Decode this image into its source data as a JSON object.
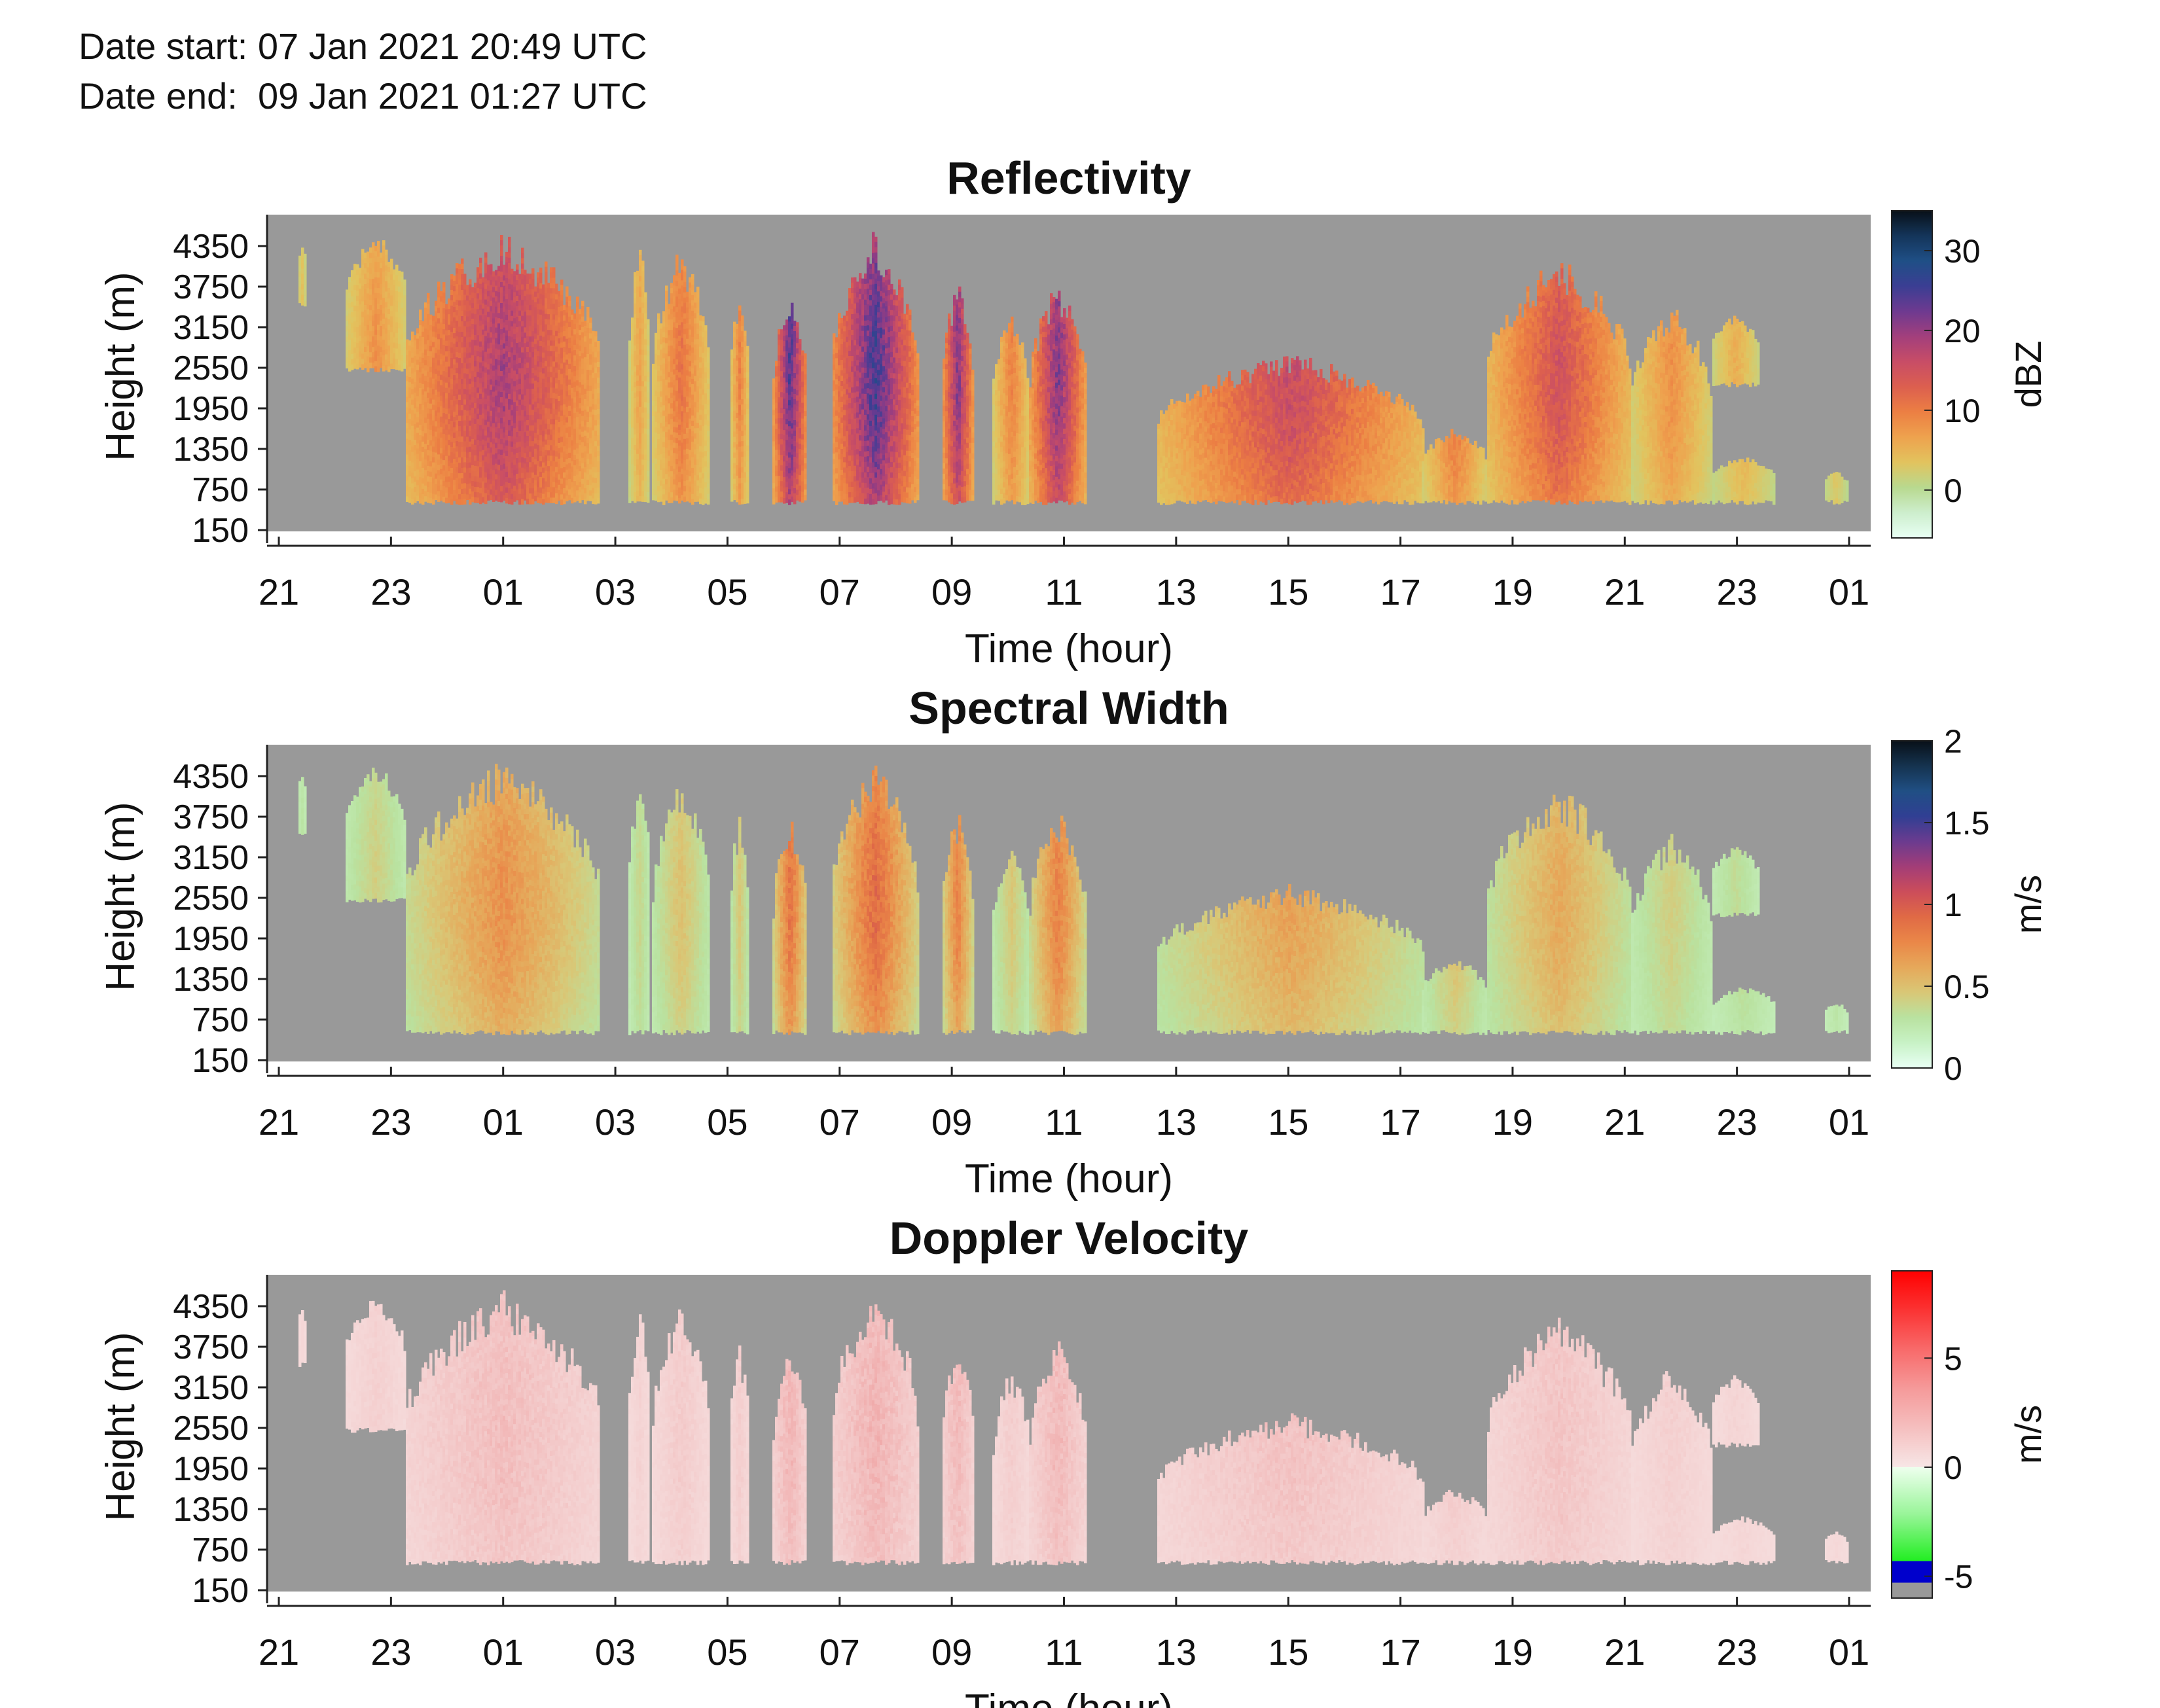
{
  "header": {
    "date_start": "Date start: 07 Jan 2021 20:49 UTC",
    "date_end": "Date end:  09 Jan 2021 01:27 UTC"
  },
  "chart_data": [
    {
      "type": "heatmap",
      "title": "Reflectivity",
      "xlabel": "Time (hour)",
      "ylabel": "Height (m)",
      "colorbar_label": "dBZ",
      "x_tick_labels": [
        "21",
        "23",
        "01",
        "03",
        "05",
        "07",
        "09",
        "11",
        "13",
        "15",
        "17",
        "19",
        "21",
        "23",
        "01"
      ],
      "y_tick_labels": [
        "150",
        "750",
        "1350",
        "1950",
        "2550",
        "3150",
        "3750",
        "4350"
      ],
      "colorbar_ticks": [
        "0",
        "10",
        "20",
        "30"
      ],
      "colorbar_range": [
        -6,
        35
      ],
      "colormap": [
        "#e8fff4",
        "#cdeecd",
        "#b8d98f",
        "#e2c35e",
        "#eea24e",
        "#ec7f43",
        "#dc5f4f",
        "#c84d66",
        "#a33f7c",
        "#6e3a90",
        "#3b3e93",
        "#1f4f86",
        "#14355a",
        "#081018"
      ],
      "no_data_color": "#999999",
      "notable_values": {
        "max_dbz": 30,
        "min_dbz": -5
      }
    },
    {
      "type": "heatmap",
      "title": "Spectral Width",
      "xlabel": "Time (hour)",
      "ylabel": "Height (m)",
      "colorbar_label": "m/s",
      "x_tick_labels": [
        "21",
        "23",
        "01",
        "03",
        "05",
        "07",
        "09",
        "11",
        "13",
        "15",
        "17",
        "19",
        "21",
        "23",
        "01"
      ],
      "y_tick_labels": [
        "150",
        "750",
        "1350",
        "1950",
        "2550",
        "3150",
        "3750",
        "4350"
      ],
      "colorbar_ticks": [
        "0",
        "0.5",
        "1",
        "1.5",
        "2"
      ],
      "colorbar_range": [
        0,
        2
      ],
      "colormap": [
        "#e8fff4",
        "#c8f2c6",
        "#b9e2a0",
        "#d9c776",
        "#e6a85a",
        "#ea8748",
        "#e06a45",
        "#cc4d5a",
        "#a33d77",
        "#6b3b8f",
        "#303f93",
        "#204f84",
        "#15334f",
        "#081018"
      ],
      "no_data_color": "#999999"
    },
    {
      "type": "heatmap",
      "title": "Doppler Velocity",
      "xlabel": "Time (hour)",
      "ylabel": "Height (m)",
      "colorbar_label": "m/s",
      "x_tick_labels": [
        "21",
        "23",
        "01",
        "03",
        "05",
        "07",
        "09",
        "11",
        "13",
        "15",
        "17",
        "19",
        "21",
        "23",
        "01"
      ],
      "y_tick_labels": [
        "150",
        "750",
        "1350",
        "1950",
        "2550",
        "3150",
        "3750",
        "4350"
      ],
      "colorbar_ticks": [
        "-5",
        "0",
        "5"
      ],
      "colorbar_range": [
        -6,
        9
      ],
      "colormap_segments": [
        {
          "from": -6,
          "to": -5.3,
          "color": "#999999"
        },
        {
          "from": -5.3,
          "to": -4.3,
          "color": "#0000cc"
        },
        {
          "from": -4.3,
          "to": 0,
          "colors": [
            "#22ee22",
            "#99f599",
            "#eeffee"
          ]
        },
        {
          "from": 0,
          "to": 9,
          "colors": [
            "#f7e6e6",
            "#f5bfbf",
            "#f59a9a",
            "#f86a6a",
            "#fb3333",
            "#ff0000"
          ]
        }
      ],
      "no_data_color": "#999999"
    }
  ]
}
